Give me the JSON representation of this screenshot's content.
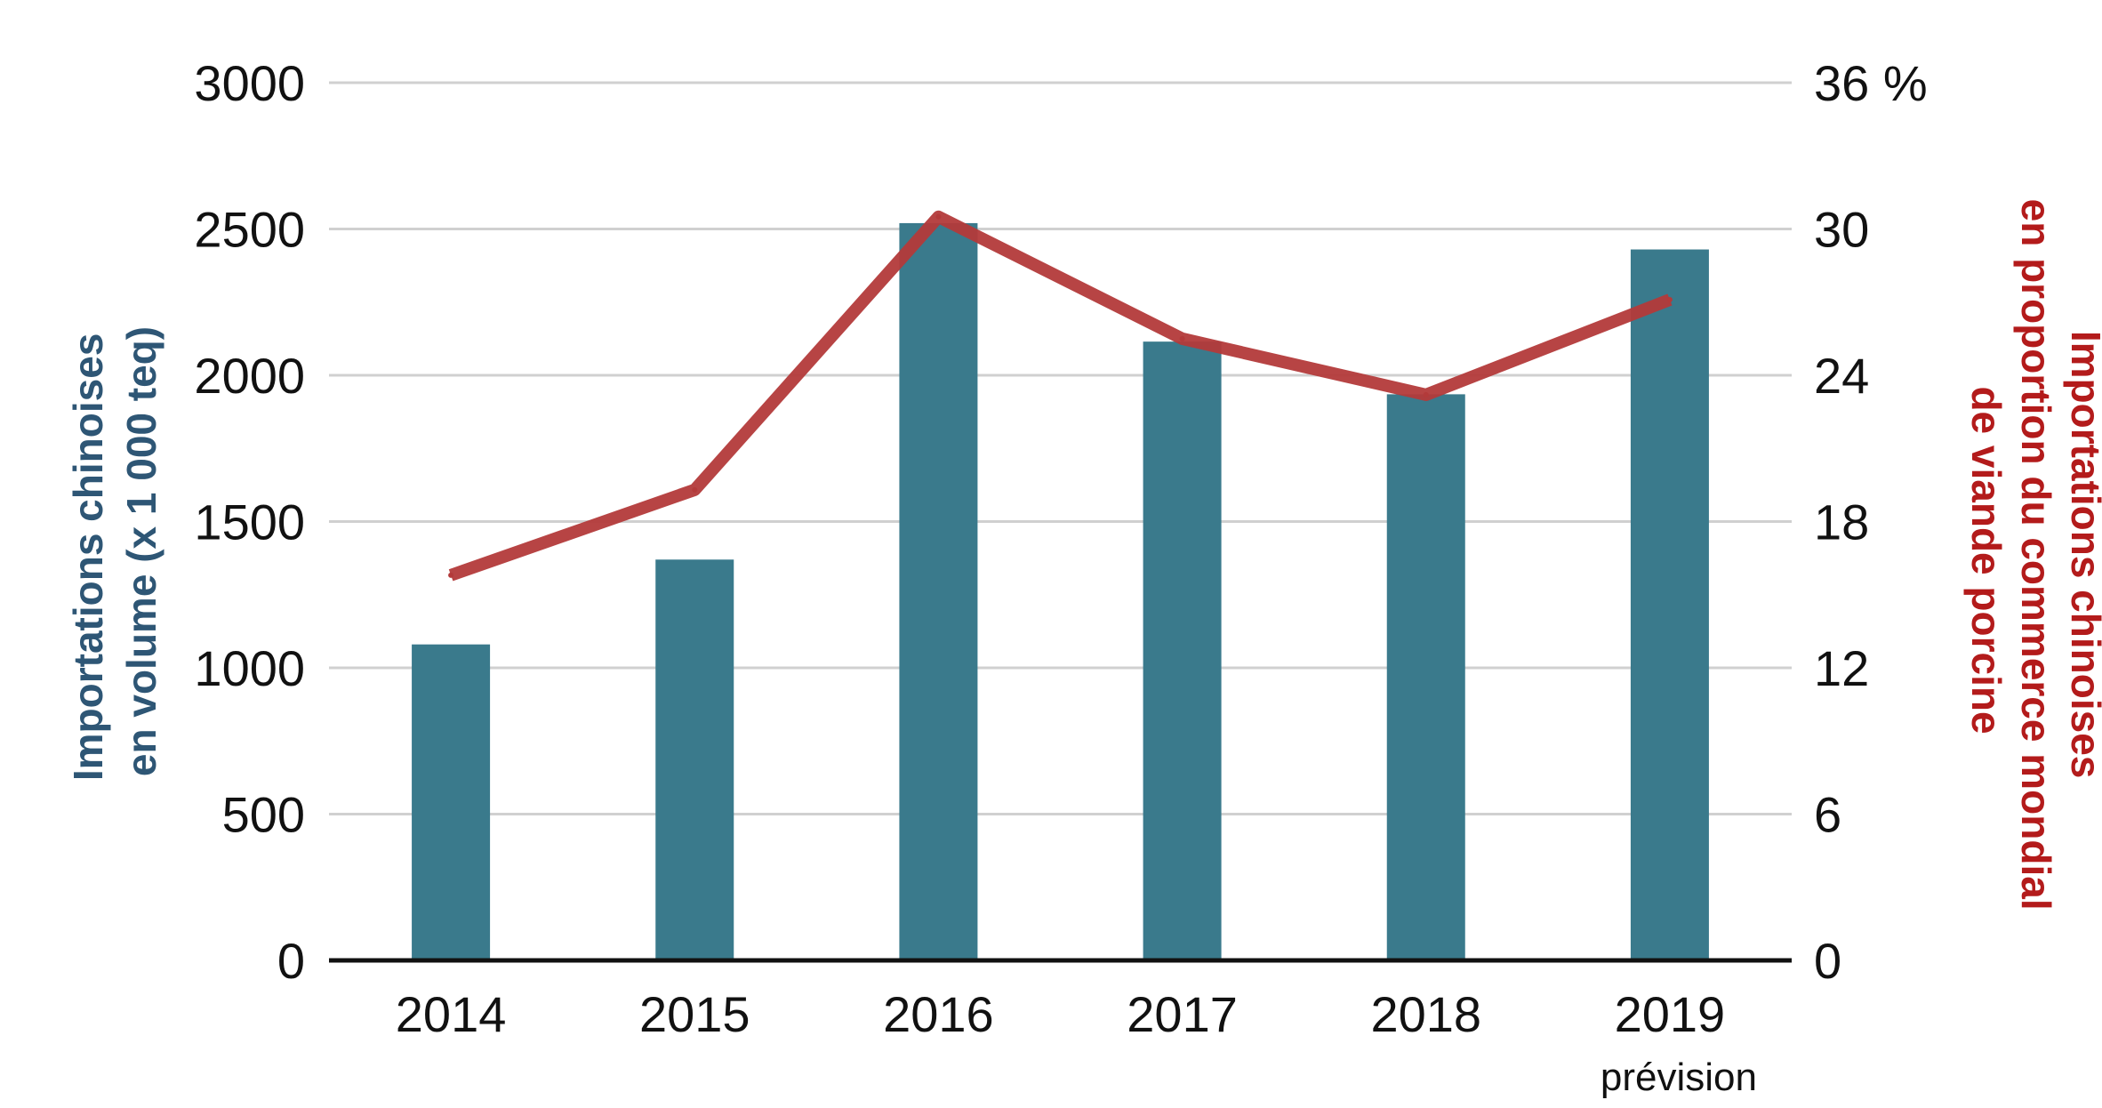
{
  "chart_data": {
    "type": "bar",
    "categories": [
      "2014",
      "2015",
      "2016",
      "2017",
      "2018",
      "2019"
    ],
    "category_note": {
      "category": "2019",
      "text": "prévision"
    },
    "series": [
      {
        "kind": "bar",
        "axis": "left",
        "color": "#3a7a8c",
        "values": [
          1080,
          1370,
          2520,
          2115,
          1935,
          2430
        ]
      },
      {
        "kind": "line",
        "axis": "right",
        "color": "#b33a3a",
        "values": [
          15.8,
          19.3,
          30.5,
          25.5,
          23.2,
          27.1
        ]
      }
    ],
    "y_left": {
      "label_lines": [
        "Importations chinoises",
        "en volume (x 1 000 teq)"
      ],
      "label_color": "#2e5675",
      "ylim": [
        0,
        3000
      ],
      "ticks": [
        "0",
        "500",
        "1000",
        "1500",
        "2000",
        "2500",
        "3000"
      ]
    },
    "y_right": {
      "label_lines": [
        "Importations chinoises",
        "en proportion du commerce mondial",
        "de viande porcine"
      ],
      "label_color": "#b31b1b",
      "ylim": [
        0,
        36
      ],
      "ticks": [
        "0",
        "6",
        "12",
        "18",
        "24",
        "30",
        "36 %"
      ]
    },
    "grid": true,
    "legend": "none"
  }
}
